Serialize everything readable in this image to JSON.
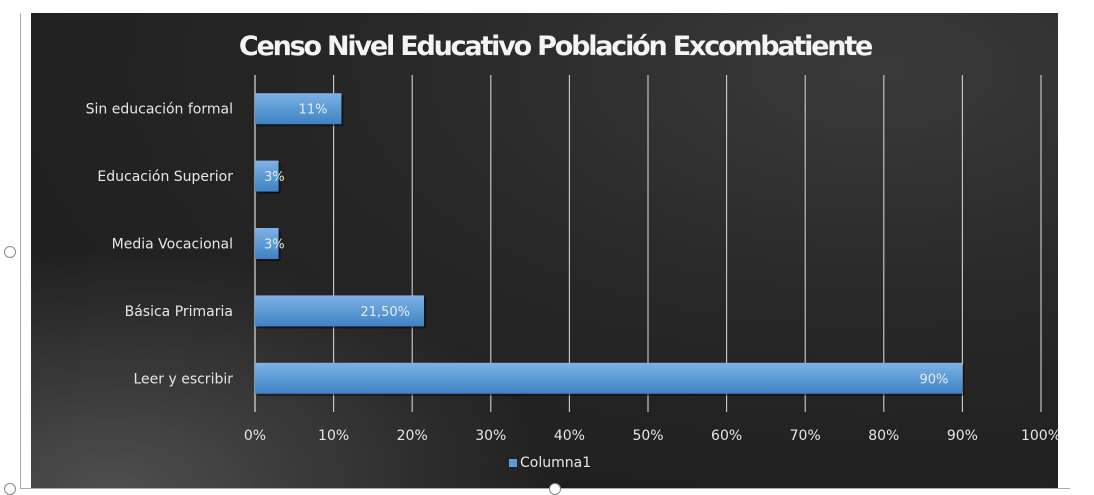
{
  "chart_data": {
    "type": "bar",
    "orientation": "horizontal",
    "title": "Censo Nivel Educativo Población Excombatiente",
    "categories": [
      "Sin educación formal",
      "Educación Superior",
      "Media Vocacional",
      "Básica Primaria",
      "Leer y escribir"
    ],
    "series": [
      {
        "name": "Columna1",
        "values": [
          11,
          3,
          3,
          21.5,
          90
        ],
        "labels": [
          "11%",
          "3%",
          "3%",
          "21,50%",
          "90%"
        ]
      }
    ],
    "xlim": [
      0,
      100
    ],
    "xticks": [
      "0%",
      "10%",
      "20%",
      "30%",
      "40%",
      "50%",
      "60%",
      "70%",
      "80%",
      "90%",
      "100%"
    ],
    "grid": "vertical",
    "legend": "bottom",
    "colors": {
      "bar": "#5b9bd5",
      "background": "#222222",
      "text": "#e6e6e6"
    }
  }
}
